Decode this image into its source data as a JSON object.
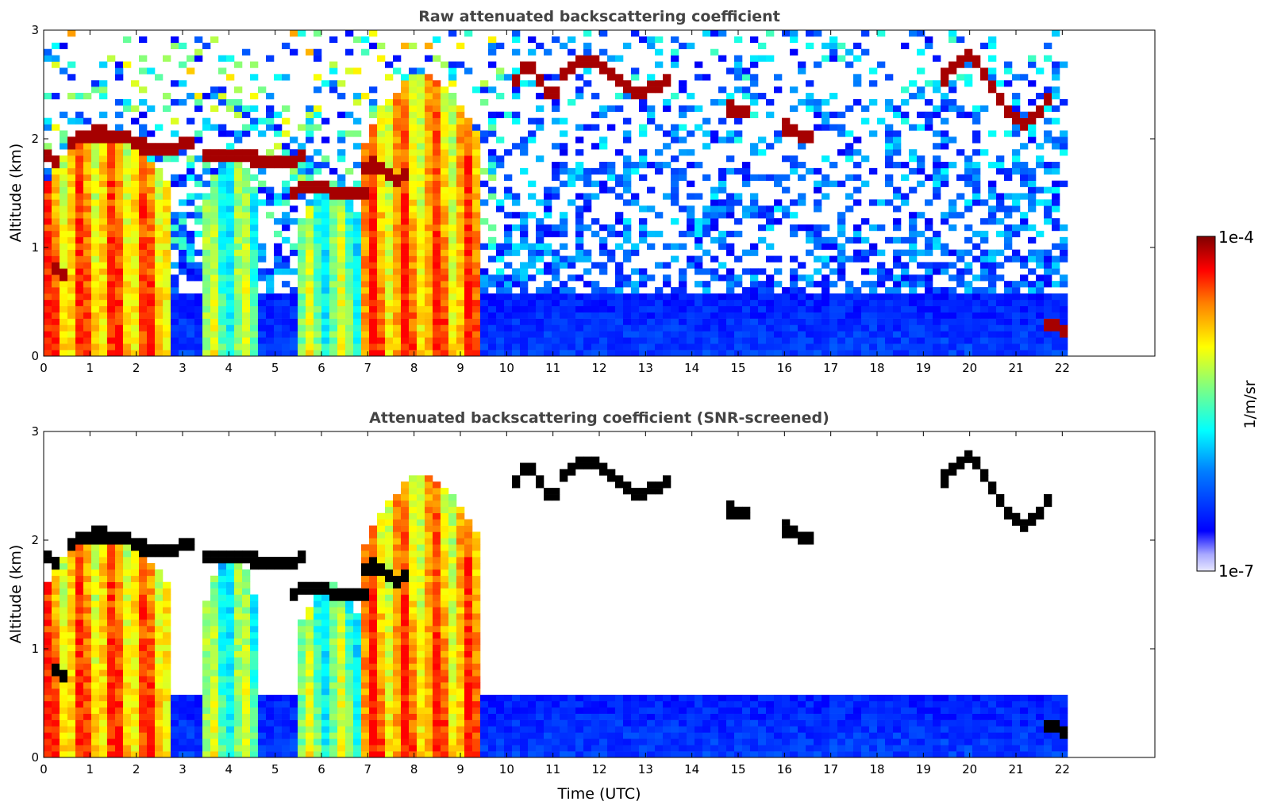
{
  "chart_data": [
    {
      "type": "heatmap",
      "title": "Raw attenuated backscattering coefficient",
      "xlabel": "",
      "ylabel": "Altitude (km)",
      "xlim": [
        0,
        24
      ],
      "ylim": [
        0,
        3
      ],
      "x_ticks": [
        "0",
        "1",
        "2",
        "3",
        "4",
        "5",
        "6",
        "7",
        "8",
        "9",
        "10",
        "11",
        "12",
        "13",
        "14",
        "15",
        "16",
        "17",
        "18",
        "19",
        "20",
        "21",
        "22"
      ],
      "y_ticks": [
        "0",
        "1",
        "2",
        "3"
      ],
      "data_end_hour": 22.2,
      "screened": false,
      "cloud_layers": [
        {
          "t": [
            0.0,
            0.4
          ],
          "alt": [
            1.75,
            1.9
          ]
        },
        {
          "t": [
            0.1,
            0.6
          ],
          "alt": [
            0.75,
            0.85
          ]
        },
        {
          "t": [
            0.6,
            3.2
          ],
          "alt": [
            1.85,
            2.1
          ]
        },
        {
          "t": [
            3.4,
            5.6
          ],
          "alt": [
            1.75,
            1.9
          ]
        },
        {
          "t": [
            5.4,
            7.0
          ],
          "alt": [
            1.45,
            1.6
          ]
        },
        {
          "t": [
            6.9,
            7.9
          ],
          "alt": [
            1.6,
            1.8
          ]
        },
        {
          "t": [
            10.2,
            11.2
          ],
          "alt": [
            2.3,
            2.75
          ]
        },
        {
          "t": [
            11.1,
            13.5
          ],
          "alt": [
            2.35,
            2.8
          ]
        },
        {
          "t": [
            14.7,
            15.2
          ],
          "alt": [
            2.2,
            2.3
          ]
        },
        {
          "t": [
            15.9,
            16.6
          ],
          "alt": [
            1.95,
            2.15
          ]
        },
        {
          "t": [
            19.3,
            21.8
          ],
          "alt": [
            1.95,
            2.95
          ]
        },
        {
          "t": [
            21.6,
            22.2
          ],
          "alt": [
            0.2,
            0.3
          ]
        }
      ],
      "aerosol_columns": [
        {
          "t": [
            0.0,
            2.7
          ],
          "top_alt": 2.1,
          "level": "high"
        },
        {
          "t": [
            3.5,
            4.6
          ],
          "top_alt": 1.9,
          "level": "medium"
        },
        {
          "t": [
            5.5,
            6.9
          ],
          "top_alt": 1.6,
          "level": "medium"
        },
        {
          "t": [
            6.9,
            9.5
          ],
          "top_alt": 2.6,
          "level": "high"
        }
      ],
      "boundary_layer_top_km": 0.6
    },
    {
      "type": "heatmap",
      "title": "Attenuated backscattering coefficient (SNR-screened)",
      "xlabel": "Time (UTC)",
      "ylabel": "Altitude (km)",
      "xlim": [
        0,
        24
      ],
      "ylim": [
        0,
        3
      ],
      "x_ticks": [
        "0",
        "1",
        "2",
        "3",
        "4",
        "5",
        "6",
        "7",
        "8",
        "9",
        "10",
        "11",
        "12",
        "13",
        "14",
        "15",
        "16",
        "17",
        "18",
        "19",
        "20",
        "21",
        "22"
      ],
      "y_ticks": [
        "0",
        "1",
        "2",
        "3"
      ],
      "data_end_hour": 22.2,
      "screened": true
    }
  ],
  "colorbar": {
    "label": "1/m/sr",
    "max_label": "1e-4",
    "min_label": "1e-7",
    "colormap": "jet",
    "scale": "log"
  },
  "colors": {
    "axes": "#000000",
    "title_text": "#444444",
    "saturated": "#000000"
  }
}
